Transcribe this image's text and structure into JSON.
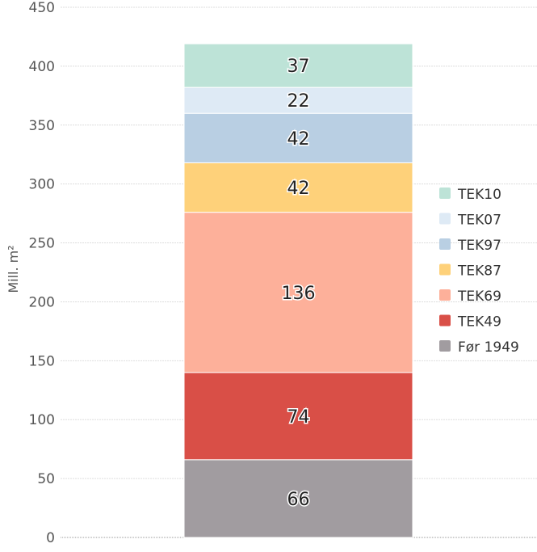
{
  "chart_data": {
    "type": "bar",
    "stacked": true,
    "title": "",
    "xlabel": "",
    "ylabel": "Mill. m²",
    "ylim": [
      0,
      450
    ],
    "yticks": [
      0,
      50,
      100,
      150,
      200,
      250,
      300,
      350,
      400,
      450
    ],
    "grid": true,
    "legend_position": "right",
    "categories": [
      ""
    ],
    "series": [
      {
        "name": "Før 1949",
        "values": [
          66
        ],
        "color": "#a19ca0"
      },
      {
        "name": "TEK49",
        "values": [
          74
        ],
        "color": "#d94f47"
      },
      {
        "name": "TEK69",
        "values": [
          136
        ],
        "color": "#fdb09a"
      },
      {
        "name": "TEK87",
        "values": [
          42
        ],
        "color": "#fed17a"
      },
      {
        "name": "TEK97",
        "values": [
          42
        ],
        "color": "#b9cfe3"
      },
      {
        "name": "TEK07",
        "values": [
          22
        ],
        "color": "#deeaf5"
      },
      {
        "name": "TEK10",
        "values": [
          37
        ],
        "color": "#bde3d7"
      }
    ]
  }
}
